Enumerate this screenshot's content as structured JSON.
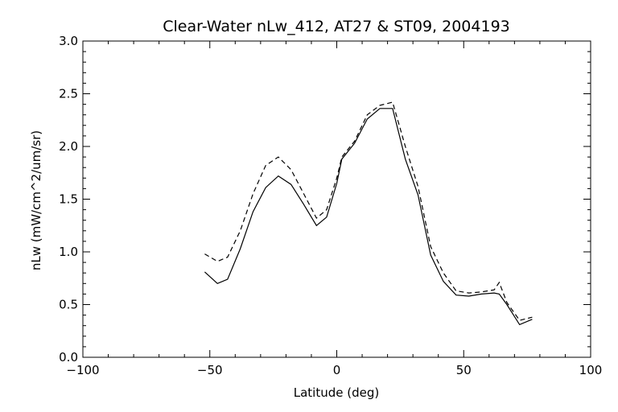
{
  "chart_data": {
    "type": "line",
    "title": "Clear-Water nLw_412, AT27 & ST09, 2004193",
    "xlabel": "Latitude (deg)",
    "ylabel": "nLw (mW/cm^2/um/sr)",
    "xlim": [
      -100,
      100
    ],
    "ylim": [
      0.0,
      3.0
    ],
    "x_ticks": [
      -100,
      -50,
      0,
      50,
      100
    ],
    "x_tick_labels": [
      "−100",
      "−50",
      "0",
      "50",
      "100"
    ],
    "y_ticks": [
      0.0,
      0.5,
      1.0,
      1.5,
      2.0,
      2.5,
      3.0
    ],
    "y_tick_labels": [
      "0.0",
      "0.5",
      "1.0",
      "1.5",
      "2.0",
      "2.5",
      "3.0"
    ],
    "grid": false,
    "series": [
      {
        "style": "solid",
        "x": [
          -52,
          -47,
          -43,
          -38,
          -33,
          -28,
          -23,
          -18,
          -13,
          -8,
          -4,
          0,
          2,
          7,
          12,
          17,
          22,
          27,
          32,
          37,
          42,
          47,
          52,
          57,
          62,
          64,
          67,
          72,
          77
        ],
        "y": [
          0.81,
          0.7,
          0.74,
          1.03,
          1.38,
          1.61,
          1.72,
          1.64,
          1.45,
          1.25,
          1.33,
          1.65,
          1.88,
          2.03,
          2.26,
          2.36,
          2.36,
          1.88,
          1.54,
          0.97,
          0.72,
          0.59,
          0.58,
          0.6,
          0.61,
          0.6,
          0.5,
          0.31,
          0.36
        ]
      },
      {
        "style": "dashed",
        "x": [
          -52,
          -47,
          -43,
          -38,
          -33,
          -28,
          -23,
          -18,
          -13,
          -8,
          -4,
          0,
          2,
          7,
          12,
          17,
          22,
          27,
          32,
          37,
          42,
          47,
          52,
          57,
          62,
          64,
          67,
          72,
          77
        ],
        "y": [
          0.98,
          0.91,
          0.95,
          1.2,
          1.55,
          1.82,
          1.9,
          1.78,
          1.55,
          1.32,
          1.4,
          1.7,
          1.9,
          2.05,
          2.3,
          2.39,
          2.42,
          2.0,
          1.62,
          1.05,
          0.8,
          0.63,
          0.61,
          0.62,
          0.64,
          0.71,
          0.52,
          0.35,
          0.38
        ]
      }
    ]
  }
}
